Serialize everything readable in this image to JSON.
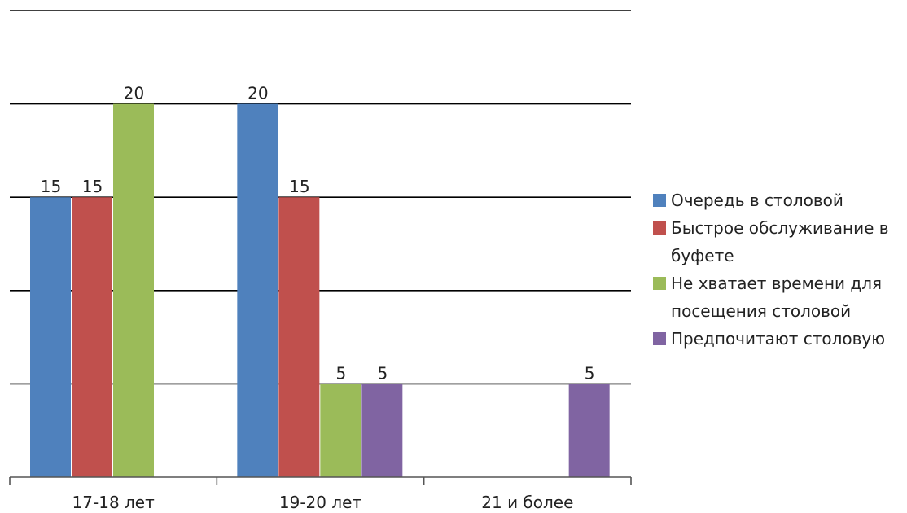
{
  "chart_data": {
    "type": "bar",
    "title": "",
    "xlabel": "",
    "ylabel": "",
    "categories": [
      "17-18 лет",
      "19-20 лет",
      "21 и более"
    ],
    "series": [
      {
        "name": "Очередь в столовой",
        "color": "#4F81BD",
        "values": [
          15,
          20,
          0
        ]
      },
      {
        "name": "Быстрое обслуживание в буфете",
        "color": "#C0504D",
        "values": [
          15,
          15,
          0
        ]
      },
      {
        "name": "Не хватает времени для посещения столовой",
        "color": "#9BBB59",
        "values": [
          20,
          5,
          0
        ]
      },
      {
        "name": "Предпочитают столовую",
        "color": "#8064A2",
        "values": [
          0,
          5,
          5
        ]
      }
    ],
    "data_labels": [
      [
        "15",
        "20",
        ""
      ],
      [
        "15",
        "15",
        ""
      ],
      [
        "20",
        "5",
        ""
      ],
      [
        "",
        "5",
        "5"
      ]
    ],
    "ylim": [
      0,
      25
    ],
    "y_gridlines": [
      5,
      10,
      15,
      20,
      25
    ],
    "grid": true,
    "y_tick_labels_visible": false,
    "legend_position": "right"
  }
}
